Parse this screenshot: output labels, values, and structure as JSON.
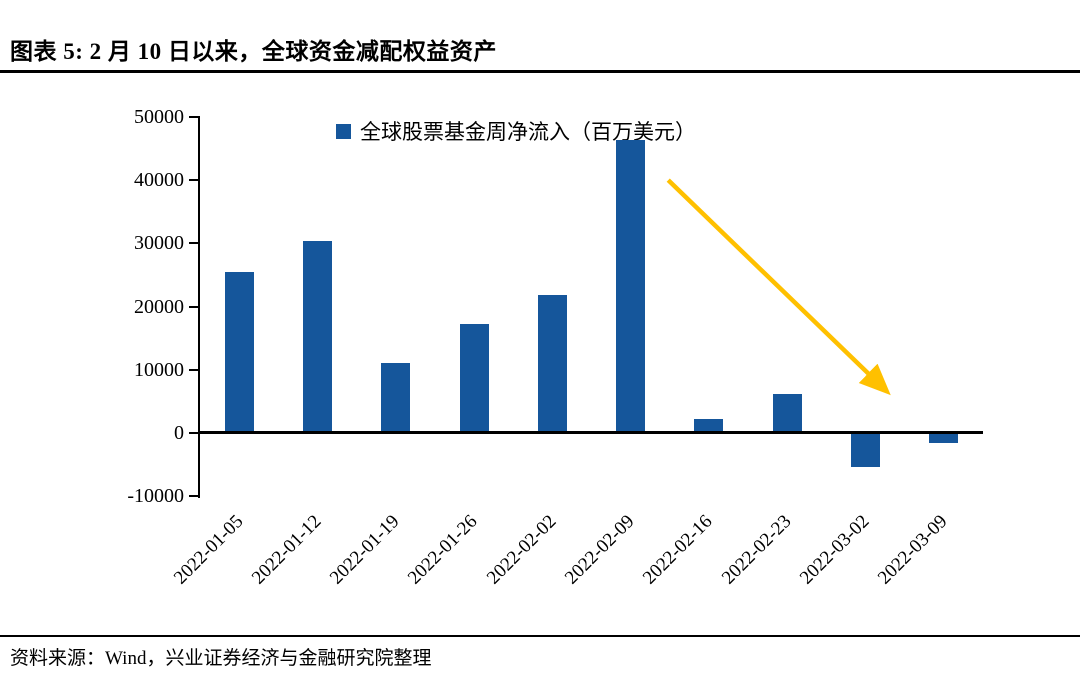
{
  "header": {
    "title": "图表 5: 2 月 10 日以来，全球资金减配权益资产"
  },
  "footer": {
    "source": "资料来源：Wind，兴业证券经济与金融研究院整理"
  },
  "chart_data": {
    "type": "bar",
    "title": "图表 5: 2 月 10 日以来，全球资金减配权益资产",
    "legend": "全球股票基金周净流入（百万美元）",
    "legend_position": "top",
    "grid": false,
    "categories": [
      "2022-01-05",
      "2022-01-12",
      "2022-01-19",
      "2022-01-26",
      "2022-02-02",
      "2022-02-09",
      "2022-02-16",
      "2022-02-23",
      "2022-03-02",
      "2022-03-09"
    ],
    "values": [
      25500,
      30400,
      11000,
      17200,
      21800,
      46300,
      2200,
      6100,
      -5100,
      -1400
    ],
    "xlabel": "",
    "ylabel": "",
    "ylim": [
      -10000,
      50000
    ],
    "yticks": [
      50000,
      40000,
      30000,
      20000,
      10000,
      0,
      -10000
    ],
    "bar_color": "#15569B",
    "axis_color": "#000000",
    "arrow_annotation": {
      "comment": "downward trend arrow",
      "from": {
        "i": 5.48,
        "v": 40000
      },
      "to": {
        "i": 8.26,
        "v": 6700
      },
      "color": "#FFC000"
    }
  }
}
